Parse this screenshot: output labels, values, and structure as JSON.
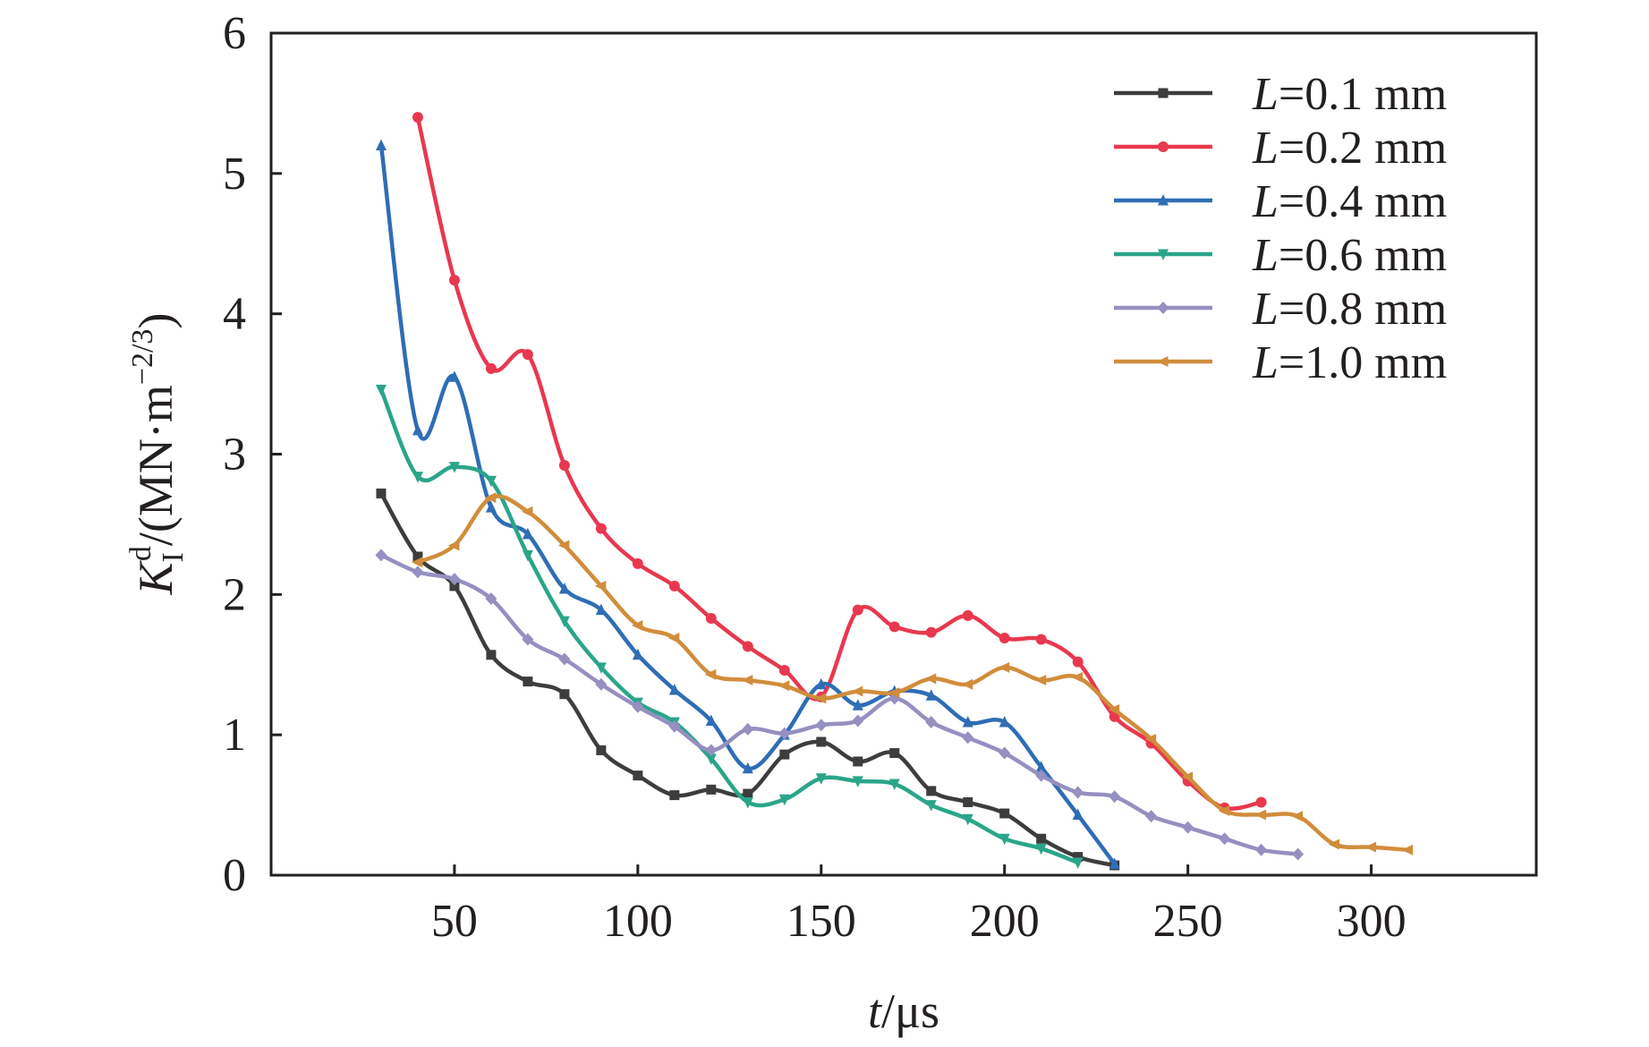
{
  "chart_data": {
    "type": "line",
    "xlabel": {
      "var": "t",
      "unit": "/μs"
    },
    "ylabel": {
      "var": "K",
      "sub": "I",
      "sup": "d",
      "unit": "/(MN·m",
      "unit_sup": "−2/3",
      "close": ")"
    },
    "xlim": [
      0,
      345
    ],
    "ylim": [
      0,
      6
    ],
    "xticks": [
      50,
      100,
      150,
      200,
      250,
      300
    ],
    "yticks": [
      0,
      1,
      2,
      3,
      4,
      5,
      6
    ],
    "grid": false,
    "legend_position": "top-right",
    "series": [
      {
        "name": "L=0.1 mm",
        "label_var": "L",
        "label_rest": "=0.1 mm",
        "color": "#3d3d3d",
        "marker": "square",
        "x": [
          30,
          40,
          50,
          60,
          70,
          80,
          90,
          100,
          110,
          120,
          130,
          140,
          150,
          160,
          170,
          180,
          190,
          200,
          210,
          220,
          230
        ],
        "y": [
          2.72,
          2.27,
          2.06,
          1.57,
          1.38,
          1.29,
          0.89,
          0.71,
          0.57,
          0.61,
          0.58,
          0.86,
          0.95,
          0.81,
          0.87,
          0.6,
          0.52,
          0.44,
          0.26,
          0.13,
          0.07
        ]
      },
      {
        "name": "L=0.2 mm",
        "label_var": "L",
        "label_rest": "=0.2 mm",
        "color": "#e8384f",
        "marker": "circle",
        "x": [
          40,
          50,
          60,
          70,
          80,
          90,
          100,
          110,
          120,
          130,
          140,
          150,
          160,
          170,
          180,
          190,
          200,
          210,
          220,
          230,
          240,
          250,
          260,
          270
        ],
        "y": [
          5.4,
          4.24,
          3.61,
          3.71,
          2.92,
          2.47,
          2.22,
          2.06,
          1.83,
          1.63,
          1.46,
          1.27,
          1.89,
          1.77,
          1.73,
          1.85,
          1.69,
          1.68,
          1.52,
          1.13,
          0.94,
          0.67,
          0.48,
          0.52
        ]
      },
      {
        "name": "L=0.4 mm",
        "label_var": "L",
        "label_rest": "=0.4 mm",
        "color": "#2f6db5",
        "marker": "triangle-up",
        "x": [
          30,
          40,
          50,
          60,
          70,
          80,
          90,
          100,
          110,
          120,
          130,
          140,
          150,
          160,
          170,
          180,
          190,
          200,
          210,
          220,
          230
        ],
        "y": [
          5.2,
          3.17,
          3.55,
          2.62,
          2.43,
          2.04,
          1.89,
          1.57,
          1.32,
          1.1,
          0.76,
          1.0,
          1.36,
          1.21,
          1.31,
          1.28,
          1.09,
          1.09,
          0.77,
          0.43,
          0.08
        ]
      },
      {
        "name": "L=0.6 mm",
        "label_var": "L",
        "label_rest": "=0.6 mm",
        "color": "#2aa58a",
        "marker": "triangle-down",
        "x": [
          30,
          40,
          50,
          60,
          70,
          80,
          90,
          100,
          110,
          120,
          130,
          140,
          150,
          160,
          170,
          180,
          190,
          200,
          210,
          220
        ],
        "y": [
          3.46,
          2.84,
          2.91,
          2.81,
          2.28,
          1.81,
          1.48,
          1.23,
          1.09,
          0.83,
          0.52,
          0.54,
          0.69,
          0.67,
          0.65,
          0.5,
          0.4,
          0.26,
          0.19,
          0.09
        ]
      },
      {
        "name": "L=0.8 mm",
        "label_var": "L",
        "label_rest": "=0.8 mm",
        "color": "#9590c0",
        "marker": "diamond",
        "x": [
          30,
          40,
          50,
          60,
          70,
          80,
          90,
          100,
          110,
          120,
          130,
          140,
          150,
          160,
          170,
          180,
          190,
          200,
          210,
          220,
          230,
          240,
          250,
          260,
          270,
          280
        ],
        "y": [
          2.28,
          2.16,
          2.11,
          1.97,
          1.68,
          1.54,
          1.36,
          1.2,
          1.06,
          0.89,
          1.04,
          1.01,
          1.07,
          1.1,
          1.26,
          1.09,
          0.98,
          0.87,
          0.71,
          0.59,
          0.56,
          0.42,
          0.34,
          0.26,
          0.18,
          0.15
        ]
      },
      {
        "name": "L=1.0 mm",
        "label_var": "L",
        "label_rest": "=1.0 mm",
        "color": "#d18d3b",
        "marker": "triangle-left",
        "x": [
          40,
          50,
          60,
          70,
          80,
          90,
          100,
          110,
          120,
          130,
          140,
          150,
          160,
          170,
          180,
          190,
          200,
          210,
          220,
          230,
          240,
          250,
          260,
          270,
          280,
          290,
          300,
          310
        ],
        "y": [
          2.23,
          2.35,
          2.69,
          2.59,
          2.35,
          2.06,
          1.78,
          1.69,
          1.43,
          1.39,
          1.35,
          1.26,
          1.31,
          1.3,
          1.4,
          1.36,
          1.48,
          1.39,
          1.41,
          1.18,
          0.97,
          0.7,
          0.46,
          0.43,
          0.42,
          0.22,
          0.2,
          0.18
        ]
      }
    ]
  }
}
